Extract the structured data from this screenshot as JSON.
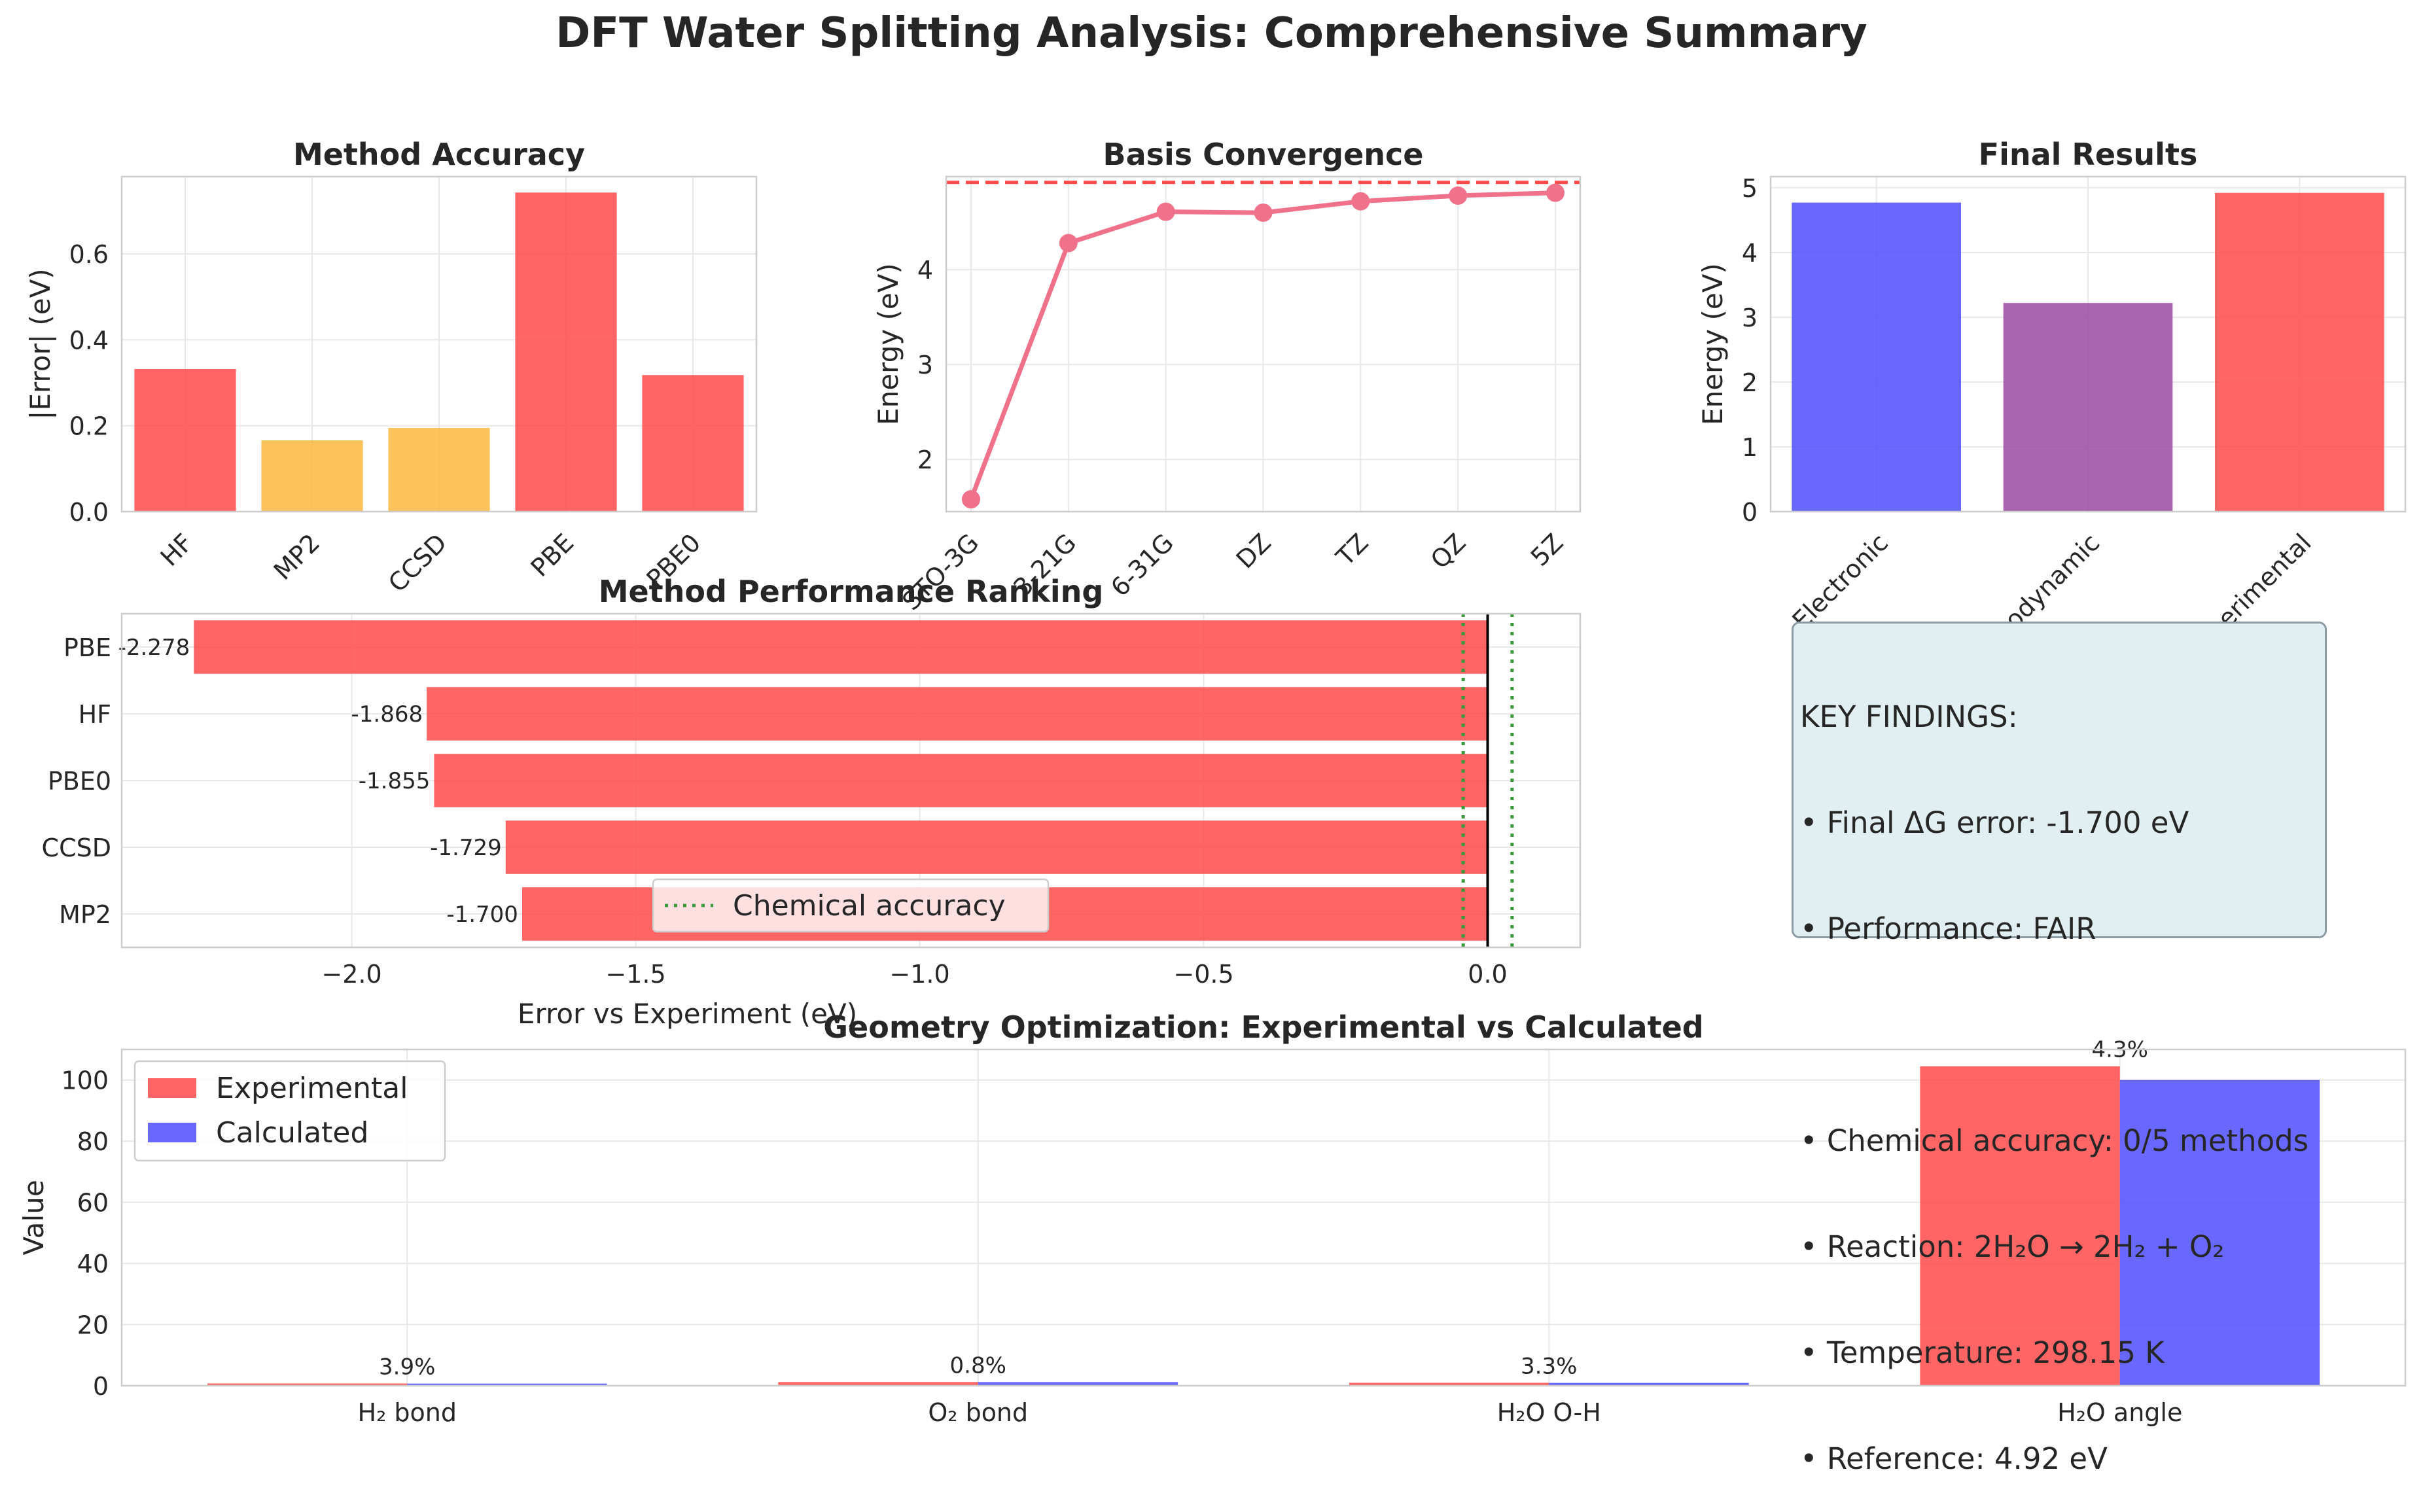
{
  "title": "DFT Water Splitting Analysis: Comprehensive Summary",
  "colors": {
    "red": "#ff4a4a",
    "orange": "#fbb73f",
    "pink": "#f0718a",
    "blue": "#4d4dff",
    "purple": "#9c4aa2",
    "green": "#3a9a3a",
    "grid": "#e8e8e8"
  },
  "key_findings": {
    "heading": "KEY FINDINGS:",
    "lines": [
      "• Final ΔG error: -1.700 eV",
      "• Performance: FAIR",
      "",
      "• Chemical accuracy: 0/5 methods",
      "• Reaction: 2H₂O → 2H₂ + O₂",
      "• Temperature: 298.15 K",
      "• Reference: 4.92 eV"
    ]
  },
  "chart_data": [
    {
      "id": "method_accuracy",
      "type": "bar",
      "title": "Method Accuracy",
      "ylabel": "|Error| (eV)",
      "categories": [
        "HF",
        "MP2",
        "CCSD",
        "PBE",
        "PBE0"
      ],
      "values": [
        0.332,
        0.166,
        0.195,
        0.743,
        0.318
      ],
      "bar_colors": [
        "red",
        "orange",
        "orange",
        "red",
        "red"
      ],
      "ylim": [
        0,
        0.78
      ],
      "yticks": [
        0.0,
        0.2,
        0.4,
        0.6
      ],
      "ytick_labels": [
        "0.0",
        "0.2",
        "0.4",
        "0.6"
      ],
      "grid": true
    },
    {
      "id": "basis_convergence",
      "type": "line",
      "title": "Basis Convergence",
      "ylabel": "Energy (eV)",
      "categories": [
        "STO-3G",
        "3-21G",
        "6-31G",
        "DZ",
        "TZ",
        "QZ",
        "5Z"
      ],
      "values": [
        1.58,
        4.28,
        4.61,
        4.6,
        4.72,
        4.78,
        4.81
      ],
      "reference_line": 4.92,
      "ylim": [
        1.45,
        4.98
      ],
      "yticks": [
        2,
        3,
        4
      ],
      "ytick_labels": [
        "2",
        "3",
        "4"
      ],
      "grid": true
    },
    {
      "id": "final_results",
      "type": "bar",
      "title": "Final Results",
      "ylabel": "Energy (eV)",
      "categories": [
        "Electronic",
        "Thermodynamic",
        "Experimental"
      ],
      "values": [
        4.77,
        3.22,
        4.92
      ],
      "bar_colors": [
        "blue",
        "purple",
        "red"
      ],
      "ylim": [
        0,
        5.17
      ],
      "yticks": [
        0,
        1,
        2,
        3,
        4,
        5
      ],
      "ytick_labels": [
        "0",
        "1",
        "2",
        "3",
        "4",
        "5"
      ],
      "grid": true
    },
    {
      "id": "method_ranking",
      "type": "bar",
      "orientation": "horizontal",
      "title": "Method Performance Ranking",
      "xlabel": "Error vs Experiment (eV)",
      "categories": [
        "PBE",
        "HF",
        "PBE0",
        "CCSD",
        "MP2"
      ],
      "values": [
        -2.278,
        -1.868,
        -1.855,
        -1.729,
        -1.7
      ],
      "value_labels": [
        "-2.278",
        "-1.868",
        "-1.855",
        "-1.729",
        "-1.700"
      ],
      "chemical_accuracy": 0.043,
      "legend": "Chemical accuracy",
      "legend_position": "lower center",
      "xlim": [
        -2.405,
        0.163
      ],
      "xticks": [
        -2.0,
        -1.5,
        -1.0,
        -0.5,
        0.0
      ],
      "xtick_labels": [
        "−2.0",
        "−1.5",
        "−1.0",
        "−0.5",
        "0.0"
      ],
      "grid": true
    },
    {
      "id": "geometry",
      "type": "bar",
      "title": "Geometry Optimization: Experimental vs Calculated",
      "ylabel": "Value",
      "categories": [
        "H₂ bond",
        "O₂ bond",
        "H₂O O-H",
        "H₂O angle"
      ],
      "series": [
        {
          "name": "Experimental",
          "values": [
            0.741,
            1.208,
            0.958,
            104.5
          ]
        },
        {
          "name": "Calculated",
          "values": [
            0.712,
            1.198,
            0.926,
            100.0
          ]
        }
      ],
      "annotations": [
        "3.9%",
        "0.8%",
        "3.3%",
        "4.3%"
      ],
      "legend_position": "upper left",
      "ylim": [
        0,
        110
      ],
      "yticks": [
        0,
        20,
        40,
        60,
        80,
        100
      ],
      "ytick_labels": [
        "0",
        "20",
        "40",
        "60",
        "80",
        "100"
      ],
      "grid": true
    }
  ]
}
